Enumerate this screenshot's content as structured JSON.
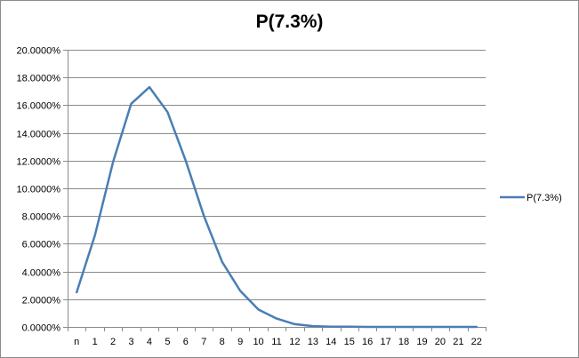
{
  "chart_data": {
    "type": "line",
    "title": "P(7.3%)",
    "xlabel": "",
    "ylabel": "",
    "categories": [
      "n",
      "1",
      "2",
      "3",
      "4",
      "5",
      "6",
      "7",
      "8",
      "9",
      "10",
      "11",
      "12",
      "13",
      "14",
      "15",
      "16",
      "17",
      "18",
      "19",
      "20",
      "21",
      "22"
    ],
    "series": [
      {
        "name": "P(7.3%)",
        "color": "#4a7eb4",
        "values": [
          2.5,
          6.6,
          11.9,
          16.1,
          17.3,
          15.5,
          12.0,
          8.0,
          4.7,
          2.6,
          1.25,
          0.6,
          0.2,
          0.06,
          0.02,
          0.01,
          0.0,
          0.0,
          0.0,
          0.0,
          0.0,
          0.0,
          0.0
        ]
      }
    ],
    "ylim": [
      0,
      20
    ],
    "ytick_step": 2,
    "ytick_labels": [
      "0.0000%",
      "2.0000%",
      "4.0000%",
      "6.0000%",
      "8.0000%",
      "10.0000%",
      "12.0000%",
      "14.0000%",
      "16.0000%",
      "18.0000%",
      "20.0000%"
    ],
    "grid": true,
    "legend_position": "right"
  }
}
